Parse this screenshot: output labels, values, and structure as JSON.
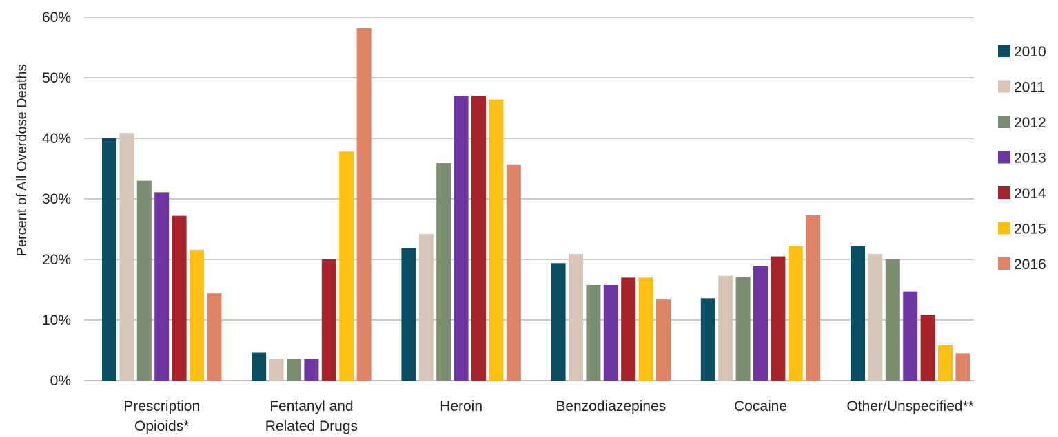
{
  "chart_data": {
    "type": "bar",
    "ylabel": "Percent of All Overdose Deaths",
    "ylim": [
      0,
      60
    ],
    "grid": true,
    "legend_position": "right",
    "y_ticks": [
      "0%",
      "10%",
      "20%",
      "30%",
      "40%",
      "50%",
      "60%"
    ],
    "categories": [
      [
        "Prescription",
        "Opioids*"
      ],
      [
        "Fentanyl and",
        "Related Drugs"
      ],
      [
        "Heroin"
      ],
      [
        "Benzodiazepines"
      ],
      [
        "Cocaine"
      ],
      [
        "Other/Unspecified**"
      ]
    ],
    "series": [
      {
        "name": "2010",
        "color": "#0b4e63",
        "values": [
          40,
          4.6,
          21.9,
          19.4,
          13.6,
          22.2
        ]
      },
      {
        "name": "2011",
        "color": "#d7c6b8",
        "values": [
          40.9,
          3.6,
          24.2,
          20.9,
          17.3,
          20.9
        ]
      },
      {
        "name": "2012",
        "color": "#7c8e72",
        "values": [
          33,
          3.6,
          35.9,
          15.8,
          17.1,
          20.1
        ]
      },
      {
        "name": "2013",
        "color": "#6f35a3",
        "values": [
          31.1,
          3.6,
          47,
          15.8,
          18.9,
          14.7
        ]
      },
      {
        "name": "2014",
        "color": "#a52329",
        "values": [
          27.2,
          20,
          47,
          17,
          20.5,
          10.9
        ]
      },
      {
        "name": "2015",
        "color": "#fdbf14",
        "values": [
          21.6,
          37.8,
          46.4,
          17,
          22.2,
          5.8
        ]
      },
      {
        "name": "2016",
        "color": "#df8466",
        "values": [
          14.4,
          58.2,
          35.6,
          13.4,
          27.3,
          4.5
        ]
      }
    ]
  }
}
